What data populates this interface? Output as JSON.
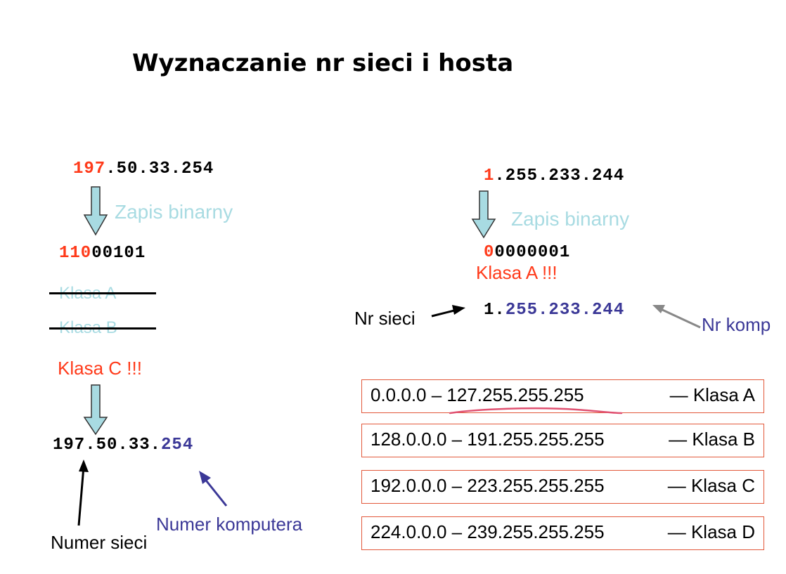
{
  "title": "Wyznaczanie nr sieci i hosta",
  "left": {
    "ip_first_octet": "197",
    "ip_rest": ".50.33.254",
    "arrow_label": "Zapis binarny",
    "binary_prefix": "110",
    "binary_rest": "00101",
    "struck_class_a": "Klasa A",
    "struck_class_b": "Klasa B",
    "result_class": "Klasa C !!!",
    "split_network": "197.50.33.",
    "split_host": "254",
    "label_network": "Numer sieci",
    "label_host": "Numer komputera"
  },
  "right": {
    "ip_first_octet": "1",
    "ip_rest": ".255.233.244",
    "arrow_label": "Zapis binarny",
    "binary_prefix": "0",
    "binary_rest": "0000001",
    "result_class": "Klasa A !!!",
    "label_network": "Nr sieci",
    "split_network": "1.",
    "split_host": "255.233.244",
    "label_host": "Nr komp"
  },
  "class_table": [
    {
      "range": "0.0.0.0 – 127.255.255.255",
      "cls": "— Klasa A"
    },
    {
      "range": "128.0.0.0 – 191.255.255.255",
      "cls": "— Klasa B"
    },
    {
      "range": "192.0.0.0 – 223.255.255.255",
      "cls": "— Klasa C"
    },
    {
      "range": "224.0.0.0 – 239.255.255.255",
      "cls": "— Klasa D"
    }
  ],
  "colors": {
    "red": "#ff3a1a",
    "blue": "#3b3897",
    "cyan": "#a8dbe2",
    "box_border": "#e2583a",
    "underline": "#e05070"
  }
}
